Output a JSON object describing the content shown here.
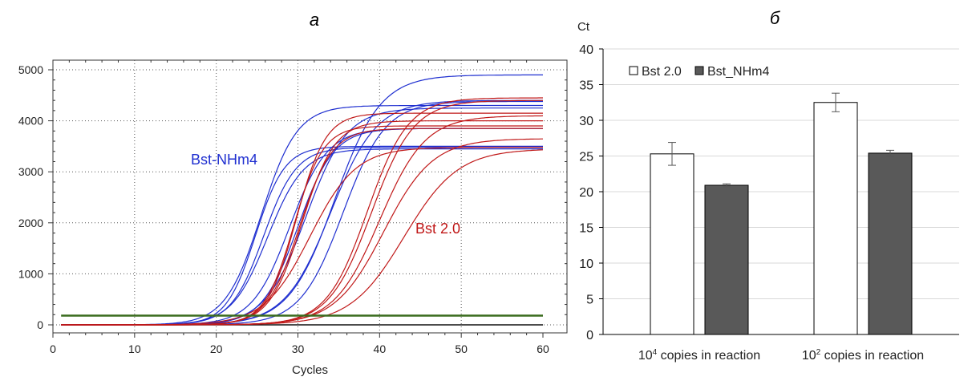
{
  "chart_data": [
    {
      "type": "line",
      "panel_label": "а",
      "xlabel": "Cycles",
      "ylabel": "",
      "xlim": [
        0,
        60
      ],
      "ylim": [
        0,
        5000
      ],
      "xticks": [
        0,
        10,
        20,
        30,
        40,
        50,
        60
      ],
      "yticks": [
        0,
        1000,
        2000,
        3000,
        4000,
        5000
      ],
      "grid": true,
      "x_range": [
        1,
        60
      ],
      "threshold": 180,
      "threshold_color": "#3a6b1e",
      "curve_model": "sigmoid: plateau / (1 + exp(-(cycle - midpoint) / slope))",
      "series": [
        {
          "name": "Bst-NHm4",
          "color": "#1f2fd0",
          "curves": [
            {
              "plateau": 4900,
              "midpoint": 34.5,
              "slope": 2.8
            },
            {
              "plateau": 4300,
              "midpoint": 25.5,
              "slope": 2.2
            },
            {
              "plateau": 3480,
              "midpoint": 25.8,
              "slope": 2.0
            },
            {
              "plateau": 3450,
              "midpoint": 26.3,
              "slope": 2.2
            },
            {
              "plateau": 3850,
              "midpoint": 29.0,
              "slope": 2.3
            },
            {
              "plateau": 4400,
              "midpoint": 34.0,
              "slope": 2.8
            },
            {
              "plateau": 4250,
              "midpoint": 31.0,
              "slope": 2.5
            },
            {
              "plateau": 3500,
              "midpoint": 24.8,
              "slope": 1.8
            },
            {
              "plateau": 4380,
              "midpoint": 35.5,
              "slope": 2.6
            },
            {
              "plateau": 3850,
              "midpoint": 30.0,
              "slope": 2.2
            }
          ]
        },
        {
          "name": "Bst 2.0",
          "color": "#c01818",
          "curves": [
            {
              "plateau": 4150,
              "midpoint": 29.8,
              "slope": 1.8
            },
            {
              "plateau": 3900,
              "midpoint": 29.5,
              "slope": 1.8
            },
            {
              "plateau": 4000,
              "midpoint": 30.5,
              "slope": 2.0
            },
            {
              "plateau": 3850,
              "midpoint": 30.2,
              "slope": 2.0
            },
            {
              "plateau": 4400,
              "midpoint": 39.0,
              "slope": 2.6
            },
            {
              "plateau": 4100,
              "midpoint": 40.0,
              "slope": 2.8
            },
            {
              "plateau": 3650,
              "midpoint": 40.5,
              "slope": 3.0
            },
            {
              "plateau": 3450,
              "midpoint": 43.0,
              "slope": 3.3
            },
            {
              "plateau": 4450,
              "midpoint": 38.5,
              "slope": 2.5
            },
            {
              "plateau": 3480,
              "midpoint": 31.5,
              "slope": 2.8
            }
          ]
        }
      ]
    },
    {
      "type": "bar",
      "panel_label": "б",
      "ylabel": "Ct",
      "ylim": [
        0,
        40
      ],
      "yticks": [
        0,
        5,
        10,
        15,
        20,
        25,
        30,
        35,
        40
      ],
      "grid": true,
      "legend_placement": "top-left",
      "categories": [
        {
          "base": "10",
          "exp": "4",
          "rest": " copies in reaction"
        },
        {
          "base": "10",
          "exp": "2",
          "rest": " copies in reaction"
        }
      ],
      "series": [
        {
          "name": "Bst 2.0",
          "color": "#ffffff",
          "values": [
            25.3,
            32.5
          ],
          "errors": [
            1.6,
            1.3
          ]
        },
        {
          "name": "Bst_NHm4",
          "color": "#595959",
          "values": [
            20.9,
            25.4
          ],
          "errors": [
            0.2,
            0.4
          ]
        }
      ]
    }
  ]
}
